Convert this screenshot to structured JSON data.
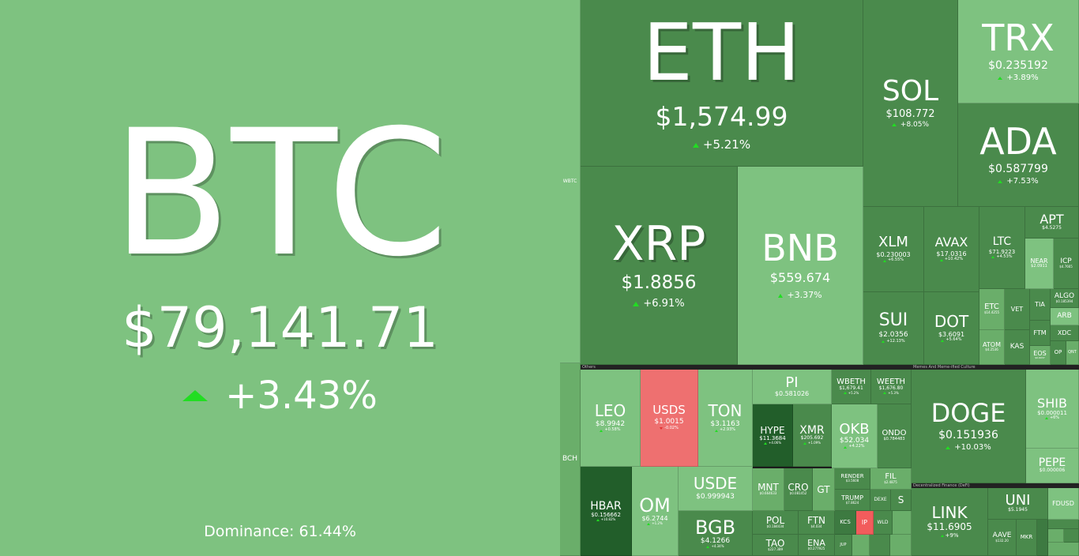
{
  "btc": {
    "symbol": "BTC",
    "price": "$79,141.71",
    "change": "+3.43%",
    "dominance": "Dominance: 61.44%"
  },
  "eth": {
    "symbol": "ETH",
    "price": "$1,574.99",
    "change": "+5.21%"
  },
  "sol": {
    "symbol": "SOL",
    "price": "$108.772",
    "change": "+8.05%"
  },
  "trx": {
    "symbol": "TRX",
    "price": "$0.235192",
    "change": "+3.89%"
  },
  "ada": {
    "symbol": "ADA",
    "price": "$0.587799",
    "change": "+7.53%"
  },
  "xrp": {
    "symbol": "XRP",
    "price": "$1.8856",
    "change": "+6.91%"
  },
  "bnb": {
    "symbol": "BNB",
    "price": "$559.674",
    "change": "+3.37%"
  },
  "xlm": {
    "symbol": "XLM",
    "price": "$0.230003",
    "change": "+6.55%"
  },
  "avax": {
    "symbol": "AVAX",
    "price": "$17.0316",
    "change": "+10.42%"
  },
  "ltc": {
    "symbol": "LTC",
    "price": "$71.9223",
    "change": "+4.53%"
  },
  "apt": {
    "symbol": "APT",
    "price": "$4.5275"
  },
  "near": {
    "symbol": "NEAR",
    "price": "$2.0911"
  },
  "icp": {
    "symbol": "ICP",
    "price": "$4.7665"
  },
  "sui": {
    "symbol": "SUI",
    "price": "$2.0356",
    "change": "+12.13%"
  },
  "dot": {
    "symbol": "DOT",
    "price": "$3.6091",
    "change": "+5.64%"
  },
  "etc": {
    "symbol": "ETC",
    "price": "$14.4255"
  },
  "vet": {
    "symbol": "VET"
  },
  "tia": {
    "symbol": "TIA"
  },
  "algo": {
    "symbol": "ALGO",
    "price": "$0.185394"
  },
  "arb": {
    "symbol": "ARB"
  },
  "atom": {
    "symbol": "ATOM",
    "price": "$4.2536"
  },
  "kas": {
    "symbol": "KAS"
  },
  "ftm": {
    "symbol": "FTM"
  },
  "xdc": {
    "symbol": "XDC"
  },
  "eos": {
    "symbol": "EOS",
    "price": "$0.6037"
  },
  "op": {
    "symbol": "OP"
  },
  "qnt": {
    "symbol": "QNT"
  },
  "wbtc_side": {
    "symbol": "WBTC"
  },
  "bch": {
    "symbol": "BCH"
  },
  "leo": {
    "symbol": "LEO",
    "price": "$8.9942",
    "change": "+0.58%"
  },
  "usds": {
    "symbol": "USDS",
    "price": "$1.0015",
    "change": "-0.02%"
  },
  "ton": {
    "symbol": "TON",
    "price": "$3.1163",
    "change": "+2.93%"
  },
  "pi": {
    "symbol": "PI",
    "price": "$0.581026"
  },
  "wbeth": {
    "symbol": "WBETH",
    "price": "$1,679.41",
    "change": "+5.2%"
  },
  "weeth": {
    "symbol": "WEETH",
    "price": "$1,676.80",
    "change": "+5.3%"
  },
  "hype": {
    "symbol": "HYPE",
    "price": "$11.3684",
    "change": "+4.06%"
  },
  "xmr": {
    "symbol": "XMR",
    "price": "$205.692",
    "change": "+1.09%"
  },
  "okb": {
    "symbol": "OKB",
    "price": "$52.034",
    "change": "+4.22%"
  },
  "ondo": {
    "symbol": "ONDO",
    "price": "$0.784483"
  },
  "hbar": {
    "symbol": "HBAR",
    "price": "$0.156662",
    "change": "+10.82%"
  },
  "om": {
    "symbol": "OM",
    "price": "$6.2744",
    "change": "+1.2%"
  },
  "usde": {
    "symbol": "USDE",
    "price": "$0.999943"
  },
  "mnt": {
    "symbol": "MNT",
    "price": "$0.664633"
  },
  "cro": {
    "symbol": "CRO",
    "price": "$0.081452"
  },
  "gt": {
    "symbol": "GT"
  },
  "render": {
    "symbol": "RENDER",
    "price": "$3.5608"
  },
  "fil": {
    "symbol": "FIL",
    "price": "$2.4875"
  },
  "bgb": {
    "symbol": "BGB",
    "price": "$4.1266",
    "change": "+4.34%"
  },
  "pol": {
    "symbol": "POL",
    "price": "$0.184434"
  },
  "ftn": {
    "symbol": "FTN",
    "price": "$4.034"
  },
  "trump": {
    "symbol": "TRUMP",
    "price": "$7.8624"
  },
  "dexe": {
    "symbol": "DEXE"
  },
  "s": {
    "symbol": "S"
  },
  "tao": {
    "symbol": "TAO",
    "price": "$227.389"
  },
  "ena": {
    "symbol": "ENA",
    "price": "$0.277925"
  },
  "kcs": {
    "symbol": "KCS"
  },
  "ip": {
    "symbol": "IP"
  },
  "wld": {
    "symbol": "WLD"
  },
  "jup": {
    "symbol": "JUP"
  },
  "doge": {
    "symbol": "DOGE",
    "price": "$0.151936",
    "change": "+10.03%"
  },
  "shib": {
    "symbol": "SHIB",
    "price": "$0.000011",
    "change": "+6%"
  },
  "pepe": {
    "symbol": "PEPE",
    "price": "$0.000006"
  },
  "link": {
    "symbol": "LINK",
    "price": "$11.6905",
    "change": "+9%"
  },
  "uni": {
    "symbol": "UNI",
    "price": "$5.1945"
  },
  "aave": {
    "symbol": "AAVE",
    "price": "$132.20"
  },
  "mkr": {
    "symbol": "MKR"
  },
  "fdusd": {
    "symbol": "FDUSD"
  },
  "sections": {
    "others": "Others",
    "memes": "Memes And Meme-ified Culture",
    "defi": "Decentralized Finance (DeFi)"
  }
}
